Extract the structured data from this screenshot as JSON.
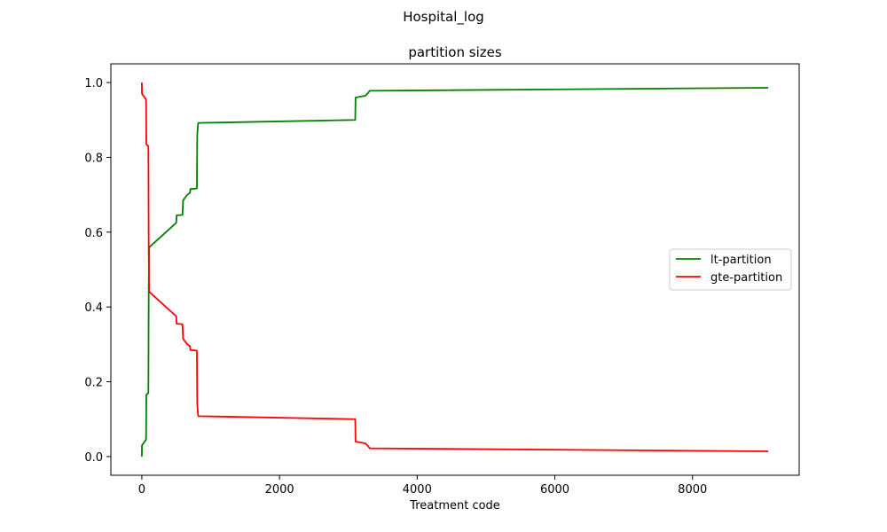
{
  "suptitle": "Hospital_log",
  "chart_data": {
    "type": "line",
    "title": "partition sizes",
    "xlabel": "Treatment code",
    "ylabel": "",
    "xlim": [
      -450,
      9550
    ],
    "ylim": [
      -0.05,
      1.05
    ],
    "xticks": [
      0,
      2000,
      4000,
      6000,
      8000
    ],
    "xtick_labels": [
      "0",
      "2000",
      "4000",
      "6000",
      "8000"
    ],
    "yticks": [
      0.0,
      0.2,
      0.4,
      0.6,
      0.8,
      1.0
    ],
    "ytick_labels": [
      "0.0",
      "0.2",
      "0.4",
      "0.6",
      "0.8",
      "1.0"
    ],
    "grid": false,
    "legend_position": "center-right",
    "series": [
      {
        "name": "lt-partition",
        "color": "#008000",
        "points": [
          [
            0,
            0.0
          ],
          [
            2,
            0.03
          ],
          [
            60,
            0.045
          ],
          [
            62,
            0.055
          ],
          [
            65,
            0.165
          ],
          [
            95,
            0.17
          ],
          [
            100,
            0.45
          ],
          [
            105,
            0.555
          ],
          [
            110,
            0.56
          ],
          [
            500,
            0.625
          ],
          [
            505,
            0.645
          ],
          [
            590,
            0.646
          ],
          [
            600,
            0.685
          ],
          [
            660,
            0.7
          ],
          [
            700,
            0.705
          ],
          [
            705,
            0.715
          ],
          [
            800,
            0.717
          ],
          [
            805,
            0.86
          ],
          [
            815,
            0.885
          ],
          [
            820,
            0.892
          ],
          [
            3100,
            0.9
          ],
          [
            3105,
            0.96
          ],
          [
            3250,
            0.965
          ],
          [
            3300,
            0.975
          ],
          [
            3310,
            0.978
          ],
          [
            9100,
            0.986
          ]
        ]
      },
      {
        "name": "gte-partition",
        "color": "#ff0000",
        "points": [
          [
            0,
            1.0
          ],
          [
            2,
            0.97
          ],
          [
            60,
            0.955
          ],
          [
            62,
            0.945
          ],
          [
            65,
            0.835
          ],
          [
            95,
            0.83
          ],
          [
            100,
            0.55
          ],
          [
            105,
            0.445
          ],
          [
            110,
            0.44
          ],
          [
            500,
            0.375
          ],
          [
            505,
            0.355
          ],
          [
            590,
            0.354
          ],
          [
            600,
            0.315
          ],
          [
            660,
            0.3
          ],
          [
            700,
            0.295
          ],
          [
            705,
            0.285
          ],
          [
            800,
            0.283
          ],
          [
            805,
            0.14
          ],
          [
            815,
            0.115
          ],
          [
            820,
            0.108
          ],
          [
            3100,
            0.1
          ],
          [
            3105,
            0.04
          ],
          [
            3250,
            0.035
          ],
          [
            3300,
            0.025
          ],
          [
            3310,
            0.022
          ],
          [
            9100,
            0.014
          ]
        ]
      }
    ]
  }
}
